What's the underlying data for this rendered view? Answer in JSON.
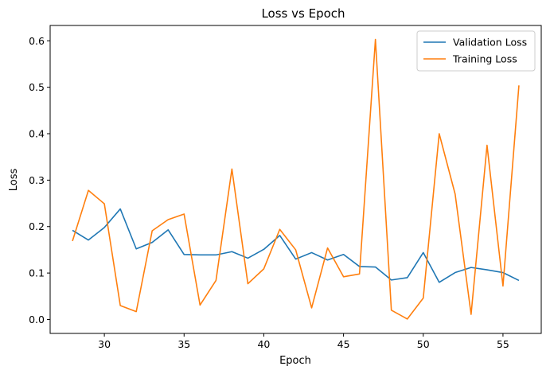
{
  "chart_data": {
    "type": "line",
    "title": "Loss vs Epoch",
    "xlabel": "Epoch",
    "ylabel": "Loss",
    "xlim": [
      26.6,
      57.4
    ],
    "ylim": [
      -0.03,
      0.633
    ],
    "xticks": [
      30,
      35,
      40,
      45,
      50,
      55
    ],
    "yticks": [
      0.0,
      0.1,
      0.2,
      0.3,
      0.4,
      0.5,
      0.6
    ],
    "grid": false,
    "legend": "top-right",
    "x": [
      28,
      29,
      30,
      31,
      32,
      33,
      34,
      35,
      36,
      37,
      38,
      39,
      40,
      41,
      42,
      43,
      44,
      45,
      46,
      47,
      48,
      49,
      50,
      51,
      52,
      53,
      54,
      55,
      56
    ],
    "series": [
      {
        "name": "Validation Loss",
        "color": "#1f77b4",
        "values": [
          0.192,
          0.171,
          0.198,
          0.238,
          0.152,
          0.166,
          0.193,
          0.14,
          0.139,
          0.139,
          0.146,
          0.132,
          0.151,
          0.181,
          0.13,
          0.144,
          0.128,
          0.14,
          0.114,
          0.113,
          0.085,
          0.09,
          0.144,
          0.08,
          0.101,
          0.112,
          0.107,
          0.101,
          0.084
        ]
      },
      {
        "name": "Training Loss",
        "color": "#ff7f0e",
        "values": [
          0.169,
          0.278,
          0.249,
          0.03,
          0.017,
          0.191,
          0.215,
          0.227,
          0.031,
          0.084,
          0.324,
          0.077,
          0.109,
          0.194,
          0.15,
          0.025,
          0.154,
          0.092,
          0.098,
          0.603,
          0.02,
          0.001,
          0.046,
          0.4,
          0.27,
          0.011,
          0.375,
          0.072,
          0.504
        ]
      }
    ]
  }
}
